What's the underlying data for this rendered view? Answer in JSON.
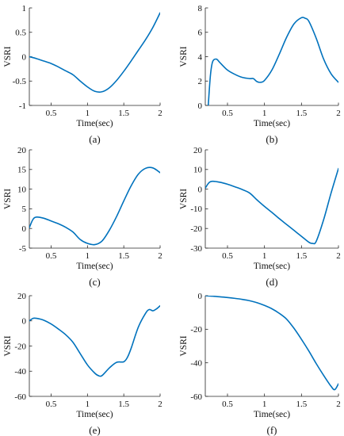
{
  "line_color": "#0072BD",
  "chart_data": [
    {
      "type": "line",
      "panel_label": "(a)",
      "xlabel": "Time(sec)",
      "ylabel": "VSRI",
      "xlim": [
        0.2,
        2
      ],
      "ylim": [
        -1,
        1
      ],
      "xticks": [
        0.5,
        1,
        1.5,
        2
      ],
      "yticks": [
        -1,
        -0.5,
        0,
        0.5,
        1
      ],
      "x": [
        0.2,
        0.3,
        0.4,
        0.5,
        0.6,
        0.7,
        0.8,
        0.9,
        1.0,
        1.1,
        1.2,
        1.3,
        1.4,
        1.5,
        1.6,
        1.7,
        1.8,
        1.9,
        2.0
      ],
      "y": [
        0.0,
        -0.04,
        -0.09,
        -0.14,
        -0.21,
        -0.29,
        -0.37,
        -0.5,
        -0.62,
        -0.71,
        -0.72,
        -0.64,
        -0.49,
        -0.3,
        -0.09,
        0.13,
        0.35,
        0.6,
        0.9
      ]
    },
    {
      "type": "line",
      "panel_label": "(b)",
      "xlabel": "Time(sec)",
      "ylabel": "VSRI",
      "xlim": [
        0.2,
        2
      ],
      "ylim": [
        0,
        8
      ],
      "xticks": [
        0.5,
        1,
        1.5,
        2
      ],
      "yticks": [
        0,
        2,
        4,
        6,
        8
      ],
      "x": [
        0.24,
        0.27,
        0.3,
        0.35,
        0.4,
        0.5,
        0.6,
        0.7,
        0.8,
        0.85,
        0.9,
        0.95,
        1.0,
        1.1,
        1.2,
        1.3,
        1.4,
        1.5,
        1.55,
        1.6,
        1.7,
        1.8,
        1.9,
        2.0
      ],
      "y": [
        0.0,
        2.5,
        3.6,
        3.8,
        3.5,
        2.9,
        2.55,
        2.3,
        2.2,
        2.2,
        1.95,
        1.9,
        2.05,
        2.9,
        4.2,
        5.6,
        6.7,
        7.2,
        7.15,
        6.9,
        5.5,
        3.8,
        2.6,
        1.9
      ]
    },
    {
      "type": "line",
      "panel_label": "(c)",
      "xlabel": "Time(sec)",
      "ylabel": "VSRI",
      "xlim": [
        0.2,
        2
      ],
      "ylim": [
        -5,
        20
      ],
      "xticks": [
        0.5,
        1,
        1.5,
        2
      ],
      "yticks": [
        -5,
        0,
        5,
        10,
        15,
        20
      ],
      "x": [
        0.2,
        0.25,
        0.3,
        0.4,
        0.5,
        0.6,
        0.7,
        0.8,
        0.9,
        1.0,
        1.1,
        1.2,
        1.3,
        1.4,
        1.5,
        1.6,
        1.7,
        1.8,
        1.9,
        2.0
      ],
      "y": [
        0.2,
        2.3,
        2.9,
        2.6,
        1.9,
        1.2,
        0.3,
        -0.9,
        -2.8,
        -3.8,
        -4.1,
        -3.2,
        -0.5,
        3.0,
        7.0,
        10.8,
        13.8,
        15.3,
        15.4,
        14.2
      ]
    },
    {
      "type": "line",
      "panel_label": "(d)",
      "xlabel": "Time(sec)",
      "ylabel": "VSRI",
      "xlim": [
        0.2,
        2
      ],
      "ylim": [
        -30,
        20
      ],
      "xticks": [
        0.5,
        1,
        1.5,
        2
      ],
      "yticks": [
        -30,
        -20,
        -10,
        0,
        10,
        20
      ],
      "x": [
        0.2,
        0.25,
        0.3,
        0.4,
        0.5,
        0.6,
        0.7,
        0.8,
        0.9,
        1.0,
        1.1,
        1.2,
        1.3,
        1.4,
        1.5,
        1.6,
        1.65,
        1.7,
        1.8,
        1.9,
        2.0
      ],
      "y": [
        0.5,
        3.3,
        4.0,
        3.5,
        2.5,
        1.2,
        -0.2,
        -2.0,
        -5.5,
        -8.8,
        -11.8,
        -15.0,
        -18.0,
        -21.0,
        -24.0,
        -27.0,
        -27.6,
        -26.5,
        -15.5,
        -2.0,
        10.5
      ]
    },
    {
      "type": "line",
      "panel_label": "(e)",
      "xlabel": "Time(sec)",
      "ylabel": "VSRI",
      "xlim": [
        0.2,
        2
      ],
      "ylim": [
        -60,
        20
      ],
      "xticks": [
        0.5,
        1,
        1.5,
        2
      ],
      "yticks": [
        -60,
        -40,
        -20,
        0,
        20
      ],
      "x": [
        0.2,
        0.25,
        0.3,
        0.4,
        0.5,
        0.6,
        0.7,
        0.8,
        0.9,
        1.0,
        1.1,
        1.15,
        1.2,
        1.3,
        1.4,
        1.5,
        1.55,
        1.6,
        1.7,
        1.8,
        1.85,
        1.9,
        1.95,
        2.0
      ],
      "y": [
        0.0,
        2.0,
        2.0,
        0.5,
        -2.5,
        -6.5,
        -11.0,
        -17.0,
        -26.0,
        -35.0,
        -41.5,
        -43.5,
        -43.5,
        -37.5,
        -33.0,
        -32.5,
        -29.0,
        -22.0,
        -5.0,
        6.0,
        9.0,
        8.0,
        9.5,
        12.0
      ]
    },
    {
      "type": "line",
      "panel_label": "(f)",
      "xlabel": "Time(sec)",
      "ylabel": "VSRI",
      "xlim": [
        0.2,
        2
      ],
      "ylim": [
        -60,
        0
      ],
      "xticks": [
        0.5,
        1,
        1.5,
        2
      ],
      "yticks": [
        -60,
        -40,
        -20,
        0
      ],
      "x": [
        0.2,
        0.3,
        0.4,
        0.5,
        0.6,
        0.7,
        0.8,
        0.9,
        1.0,
        1.1,
        1.2,
        1.3,
        1.4,
        1.5,
        1.6,
        1.7,
        1.8,
        1.9,
        1.95,
        2.0
      ],
      "y": [
        0.0,
        -0.3,
        -0.7,
        -1.1,
        -1.6,
        -2.2,
        -3.0,
        -4.2,
        -5.8,
        -7.8,
        -10.5,
        -14.0,
        -19.5,
        -26.0,
        -33.0,
        -40.5,
        -47.5,
        -54.0,
        -56.0,
        -52.5
      ]
    }
  ]
}
